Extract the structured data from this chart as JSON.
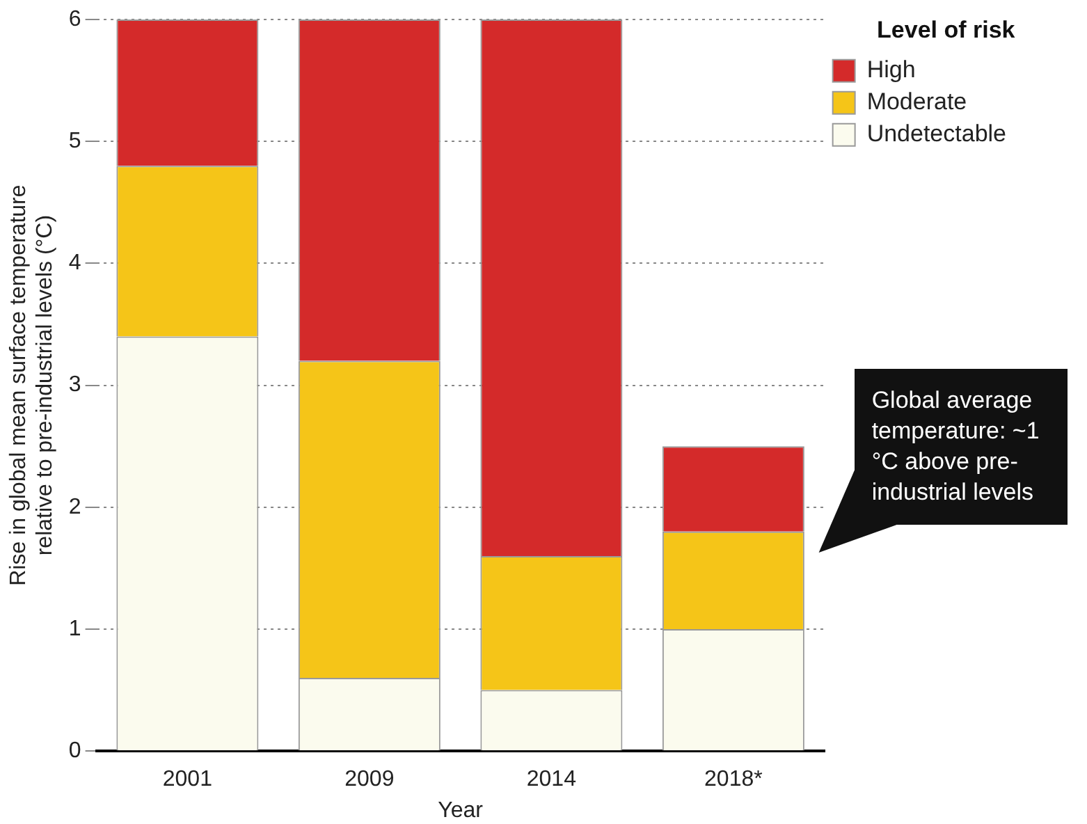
{
  "chart_data": {
    "type": "bar",
    "stacked": true,
    "xlabel": "Year",
    "ylabel": "Rise in global mean surface temperature relative to pre-industrial levels (°C)",
    "legend_title": "Level of risk",
    "legend": "top right",
    "grid": "y",
    "line_style": "dotted",
    "categories": [
      "2001",
      "2009",
      "2014",
      "2018*"
    ],
    "series": [
      {
        "name": "Undetectable",
        "color": "#fbfbee",
        "values": [
          3.4,
          0.6,
          0.5,
          1
        ]
      },
      {
        "name": "Moderate",
        "color": "#f5c518",
        "values": [
          1.4,
          2.6,
          1.1,
          0.8
        ]
      },
      {
        "name": "High",
        "color": "#d42a2a",
        "values": [
          1.2,
          2.8,
          4.4,
          0.7
        ]
      }
    ],
    "ylim": [
      0,
      6
    ],
    "yticks": [
      0,
      1,
      2,
      3,
      4,
      5,
      6
    ],
    "annotations": [
      "Global average temperature: ~1 °C above pre-industrial levels"
    ]
  }
}
